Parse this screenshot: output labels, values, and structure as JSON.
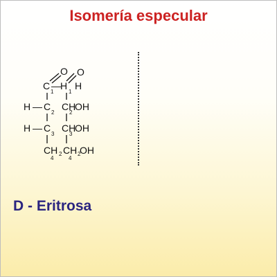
{
  "title": "Isomería especular",
  "caption": "D - Eritrosa",
  "colors": {
    "title": "#cc2222",
    "caption": "#2b2580",
    "background_top": "#ffffff",
    "background_bottom": "#fbecaa",
    "structure": "#111111"
  },
  "structure": {
    "left": {
      "row1": {
        "c": "C",
        "num": "1",
        "o": "O",
        "dash": "—",
        "h": "H"
      },
      "row2": {
        "h": "H",
        "dash": "—",
        "c": "C",
        "num": "2",
        "ch": "CH",
        "oh": "OH"
      },
      "row3": {
        "h": "H",
        "dash": "—",
        "c": "C",
        "num": "3",
        "ch": "CH",
        "oh": "OH"
      },
      "row4": {
        "ch2": "CH",
        "sub2": "2",
        "oh": "OH",
        "num": "4"
      }
    },
    "right": {
      "row1": {
        "o": "O",
        "h": "H",
        "num": "1"
      },
      "row2": {
        "num": "2"
      },
      "row3": {
        "num": "3"
      },
      "row4": {
        "num": "4"
      }
    }
  }
}
